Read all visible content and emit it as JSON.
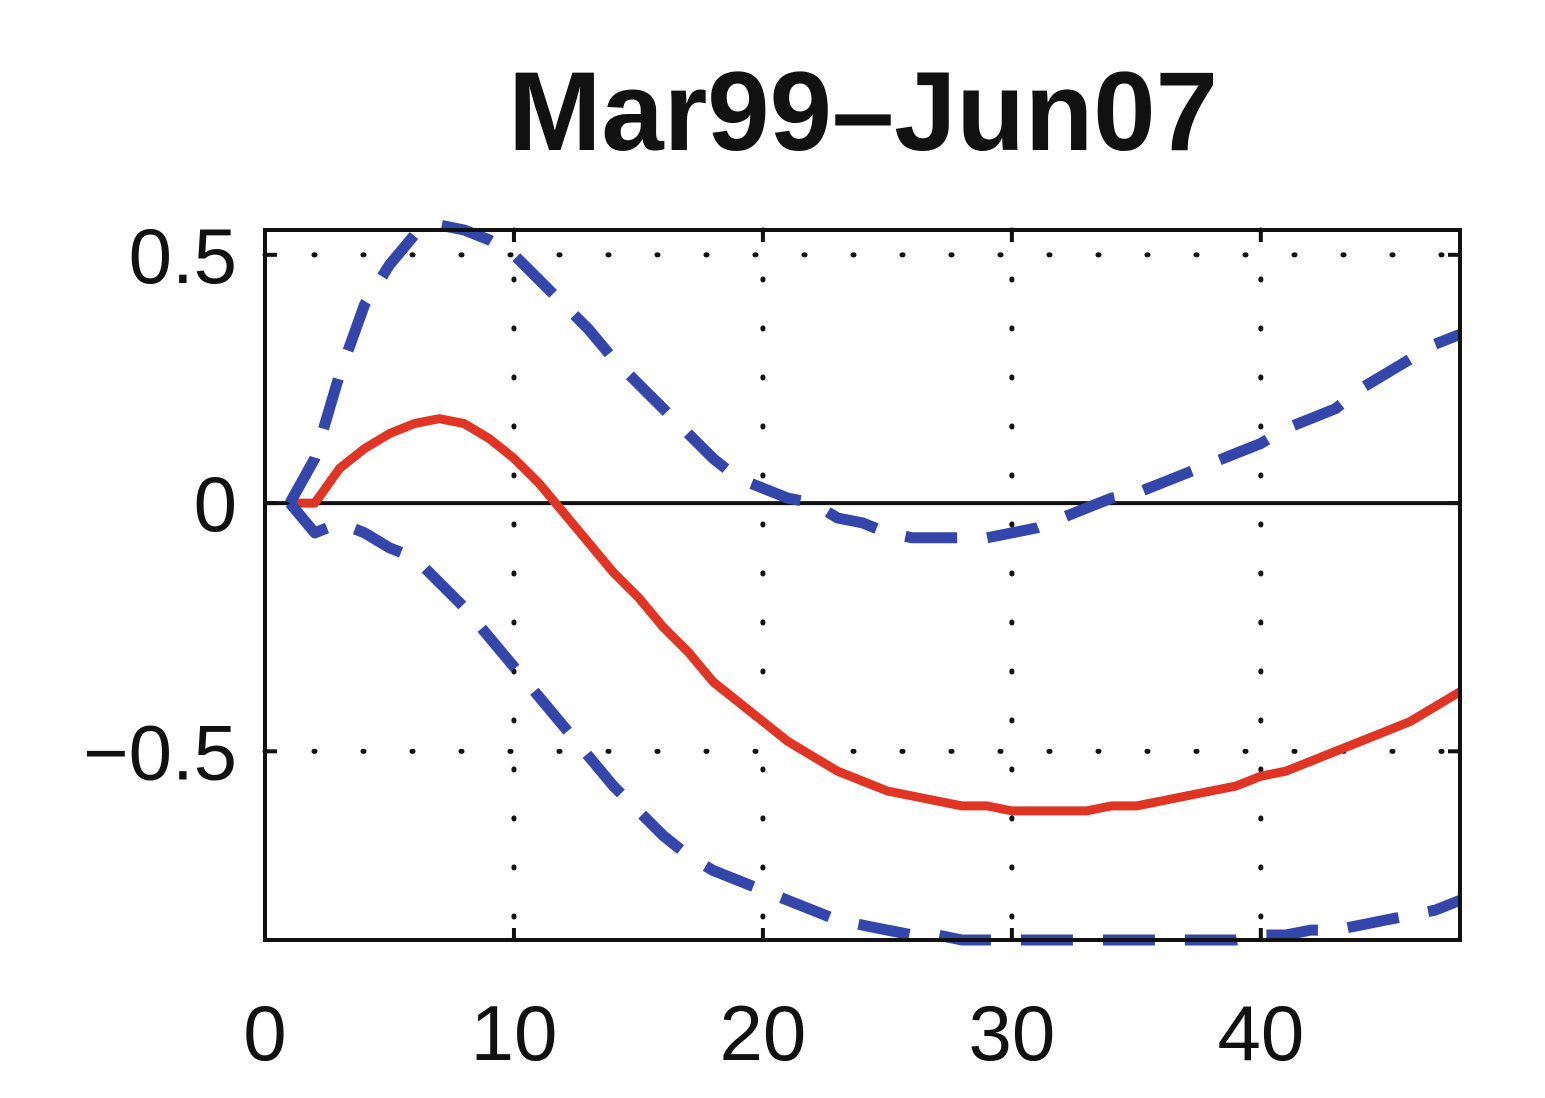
{
  "chart_data": {
    "type": "line",
    "title": "Mar99–Jun07",
    "xlabel": "",
    "ylabel": "",
    "xlim": [
      0,
      48
    ],
    "ylim": [
      -0.88,
      0.55
    ],
    "x_ticks": [
      0,
      10,
      20,
      30,
      40
    ],
    "x_tick_labels": [
      "0",
      "10",
      "20",
      "30",
      "40"
    ],
    "y_ticks": [
      -0.5,
      0,
      0.5
    ],
    "y_tick_labels": [
      "−0.5",
      "0",
      "0.5"
    ],
    "grid": true,
    "zero_line": true,
    "legend": "none",
    "series": [
      {
        "style": "solid",
        "color": "#e03424",
        "x": [
          1,
          2,
          3,
          4,
          5,
          6,
          7,
          8,
          9,
          10,
          11,
          12,
          13,
          14,
          15,
          16,
          17,
          18,
          19,
          20,
          21,
          22,
          23,
          24,
          25,
          26,
          27,
          28,
          29,
          30,
          31,
          32,
          33,
          34,
          35,
          36,
          37,
          38,
          39,
          40,
          41,
          42,
          43,
          44,
          45,
          46,
          47,
          48
        ],
        "values": [
          0.0,
          0.0,
          0.07,
          0.11,
          0.14,
          0.16,
          0.17,
          0.16,
          0.13,
          0.09,
          0.04,
          -0.02,
          -0.08,
          -0.14,
          -0.19,
          -0.25,
          -0.3,
          -0.36,
          -0.4,
          -0.44,
          -0.48,
          -0.51,
          -0.54,
          -0.56,
          -0.58,
          -0.59,
          -0.6,
          -0.61,
          -0.61,
          -0.62,
          -0.62,
          -0.62,
          -0.62,
          -0.61,
          -0.61,
          -0.6,
          -0.59,
          -0.58,
          -0.57,
          -0.55,
          -0.54,
          -0.52,
          -0.5,
          -0.48,
          -0.46,
          -0.44,
          -0.41,
          -0.38
        ]
      },
      {
        "style": "dashed",
        "color": "#3446a9",
        "x": [
          1,
          2,
          3,
          4,
          5,
          6,
          7,
          8,
          9,
          10,
          11,
          12,
          13,
          14,
          15,
          16,
          17,
          18,
          19,
          20,
          21,
          22,
          23,
          24,
          25,
          26,
          27,
          28,
          29,
          30,
          31,
          32,
          33,
          34,
          35,
          36,
          37,
          38,
          39,
          40,
          41,
          42,
          43,
          44,
          45,
          46,
          47,
          48
        ],
        "values": [
          0.0,
          0.09,
          0.26,
          0.4,
          0.48,
          0.54,
          0.56,
          0.55,
          0.53,
          0.5,
          0.45,
          0.4,
          0.35,
          0.29,
          0.24,
          0.19,
          0.14,
          0.09,
          0.05,
          0.03,
          0.01,
          0.0,
          -0.03,
          -0.04,
          -0.06,
          -0.07,
          -0.07,
          -0.07,
          -0.07,
          -0.06,
          -0.05,
          -0.03,
          -0.01,
          0.01,
          0.02,
          0.04,
          0.06,
          0.08,
          0.1,
          0.12,
          0.15,
          0.17,
          0.19,
          0.23,
          0.26,
          0.29,
          0.32,
          0.34
        ]
      },
      {
        "style": "dashed",
        "color": "#3446a9",
        "x": [
          1,
          2,
          3,
          4,
          5,
          6,
          7,
          8,
          9,
          10,
          11,
          12,
          13,
          14,
          15,
          16,
          17,
          18,
          19,
          20,
          21,
          22,
          23,
          24,
          25,
          26,
          27,
          28,
          29,
          30,
          31,
          32,
          33,
          34,
          35,
          36,
          37,
          38,
          39,
          40,
          41,
          42,
          43,
          44,
          45,
          46,
          47,
          48
        ],
        "values": [
          0.0,
          -0.06,
          -0.04,
          -0.06,
          -0.09,
          -0.11,
          -0.16,
          -0.21,
          -0.27,
          -0.33,
          -0.39,
          -0.45,
          -0.51,
          -0.57,
          -0.62,
          -0.67,
          -0.71,
          -0.74,
          -0.76,
          -0.78,
          -0.8,
          -0.82,
          -0.84,
          -0.85,
          -0.86,
          -0.87,
          -0.87,
          -0.88,
          -0.88,
          -0.88,
          -0.88,
          -0.88,
          -0.88,
          -0.88,
          -0.88,
          -0.88,
          -0.88,
          -0.88,
          -0.88,
          -0.87,
          -0.87,
          -0.86,
          -0.86,
          -0.85,
          -0.84,
          -0.83,
          -0.82,
          -0.8
        ]
      }
    ]
  }
}
